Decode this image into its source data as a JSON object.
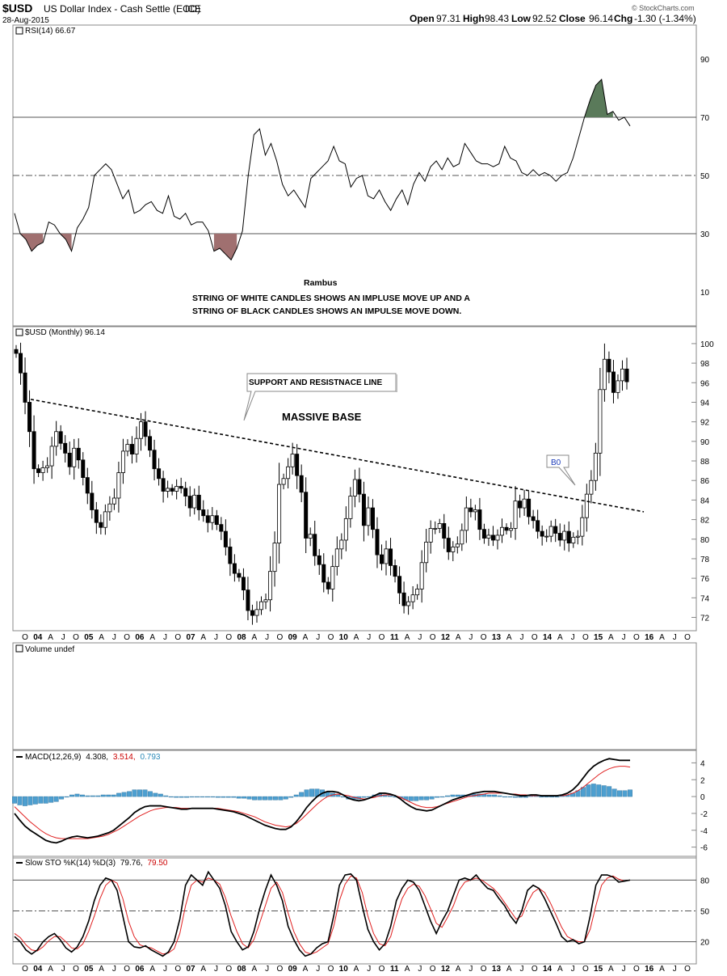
{
  "header": {
    "symbol": "$USD",
    "name": "US Dollar Index - Cash Settle (EOD)",
    "exchange": "ICE",
    "date": "28-Aug-2015",
    "open_label": "Open",
    "open": "97.31",
    "high_label": "High",
    "high": "98.43",
    "low_label": "Low",
    "low": "92.52",
    "close_label": "Close",
    "close": "96.14",
    "chg_label": "Chg",
    "chg": "-1.30 (-1.34%)",
    "watermark": "© StockCharts.com"
  },
  "colors": {
    "up_candle": "#ffffff",
    "down_candle": "#000000",
    "rsi_overbought_fill": "#5a7a5a",
    "rsi_oversold_fill": "#a07070",
    "histogram": "#4d9fd0",
    "signal_line": "#e02020",
    "grid": "#d0d0d0",
    "sto_d_label": "#cc0000",
    "macd_hist_label": "#2a8ab8"
  },
  "x_axis": {
    "labels_row": [
      "O",
      "04",
      "A",
      "J",
      "O",
      "05",
      "A",
      "J",
      "O",
      "06",
      "A",
      "J",
      "O",
      "07",
      "A",
      "J",
      "O",
      "08",
      "A",
      "J",
      "O",
      "09",
      "A",
      "J",
      "O",
      "10",
      "A",
      "J",
      "O",
      "11",
      "A",
      "J",
      "O",
      "12",
      "A",
      "J",
      "O",
      "13",
      "A",
      "J",
      "O",
      "14",
      "A",
      "J",
      "O",
      "15",
      "A",
      "J",
      "O",
      "16",
      "A",
      "J",
      "O"
    ]
  },
  "chart_data": [
    {
      "type": "line",
      "panel": "rsi",
      "legend": "RSI(14) 66.67",
      "yticks": [
        90,
        70,
        50,
        30,
        10
      ],
      "ylim": [
        0,
        100
      ],
      "reference_lines": [
        70,
        50,
        30
      ],
      "values": [
        37,
        30,
        28,
        24,
        26,
        27,
        34,
        33,
        30,
        28,
        24,
        32,
        35,
        39,
        50,
        52,
        54,
        52,
        47,
        42,
        45,
        37,
        38,
        40,
        41,
        38,
        37,
        43,
        36,
        35,
        37,
        33,
        34,
        34,
        31,
        24,
        25,
        23,
        21,
        25,
        31,
        50,
        64,
        66,
        57,
        61,
        55,
        47,
        43,
        45,
        42,
        39,
        49,
        51,
        53,
        55,
        60,
        55,
        54,
        46,
        49,
        50,
        43,
        42,
        45,
        41,
        38,
        42,
        45,
        40,
        47,
        51,
        48,
        53,
        55,
        52,
        56,
        53,
        54,
        61,
        58,
        55,
        54,
        54,
        53,
        54,
        60,
        56,
        55,
        51,
        50,
        52,
        50,
        51,
        50,
        48,
        50,
        51,
        56,
        63,
        70,
        76,
        81,
        83,
        71,
        72,
        69,
        70,
        67
      ]
    },
    {
      "type": "candlestick",
      "panel": "price",
      "legend": "$USD (Monthly) 96.14",
      "yticks": [
        100,
        98,
        96,
        94,
        92,
        90,
        88,
        86,
        84,
        82,
        80,
        78,
        76,
        74,
        72
      ],
      "ylim": [
        70.8,
        101.4
      ],
      "closes": [
        99.0,
        97.0,
        94.0,
        91.0,
        87.2,
        86.8,
        87.3,
        87.5,
        89.5,
        91.0,
        89.8,
        88.8,
        87.4,
        89.3,
        88.1,
        86.3,
        84.7,
        83.0,
        81.7,
        81.2,
        82.8,
        83.6,
        84.2,
        86.8,
        89.0,
        89.7,
        88.7,
        90.3,
        92.0,
        90.5,
        89.1,
        87.2,
        86.2,
        84.9,
        85.2,
        84.9,
        85.4,
        85.2,
        84.4,
        83.2,
        84.5,
        83.0,
        82.4,
        81.7,
        82.4,
        81.5,
        80.8,
        79.2,
        77.5,
        76.5,
        76.1,
        74.8,
        72.7,
        72.2,
        72.8,
        73.6,
        73.8,
        76.7,
        79.6,
        85.6,
        86.2,
        87.4,
        88.7,
        86.5,
        84.8,
        80.1,
        80.5,
        78.3,
        77.4,
        75.6,
        74.9,
        77.2,
        79.0,
        79.9,
        82.1,
        84.4,
        86.1,
        84.6,
        81.4,
        83.2,
        81.0,
        78.4,
        77.5,
        79.0,
        77.3,
        76.2,
        74.5,
        73.2,
        73.6,
        74.3,
        74.9,
        77.6,
        79.7,
        81.1,
        81.1,
        81.6,
        80.1,
        78.7,
        79.2,
        79.5,
        80.9,
        83.2,
        82.8,
        83.0,
        81.0,
        80.1,
        80.4,
        79.9,
        80.4,
        81.2,
        80.9,
        81.1,
        83.9,
        83.2,
        84.1,
        82.3,
        81.9,
        80.8,
        80.3,
        80.3,
        81.3,
        80.6,
        79.9,
        80.8,
        79.6,
        80.2,
        80.3,
        82.2,
        84.6,
        86.0,
        88.8,
        95.3,
        98.4,
        97.1,
        95.0,
        96.2,
        97.4,
        96.1
      ],
      "trendline": {
        "label": "SUPPORT AND RESISTNACE LINE",
        "start": 94.3,
        "end": 82.8
      },
      "annotations": [
        "MASSIVE BASE",
        "B0"
      ]
    },
    {
      "type": "bar",
      "panel": "volume",
      "legend": "Volume undef",
      "values": []
    },
    {
      "type": "line",
      "panel": "macd",
      "legend_prefix": "MACD(12,26,9)",
      "legend_macd": "4.308,",
      "legend_signal": "3.514,",
      "legend_hist": "0.793",
      "yticks": [
        4,
        2,
        0,
        -2,
        -4,
        -6
      ],
      "ylim": [
        -7,
        5
      ],
      "macd": [
        -2.0,
        -2.8,
        -3.5,
        -4.0,
        -4.4,
        -4.8,
        -5.2,
        -5.4,
        -5.5,
        -5.3,
        -5.0,
        -4.8,
        -4.7,
        -4.8,
        -4.9,
        -4.8,
        -4.7,
        -4.5,
        -4.3,
        -4.0,
        -3.5,
        -3.0,
        -2.5,
        -1.9,
        -1.5,
        -1.2,
        -1.1,
        -1.1,
        -1.1,
        -1.2,
        -1.3,
        -1.4,
        -1.5,
        -1.5,
        -1.4,
        -1.4,
        -1.4,
        -1.4,
        -1.4,
        -1.5,
        -1.6,
        -1.7,
        -1.8,
        -2.0,
        -2.2,
        -2.5,
        -2.8,
        -3.1,
        -3.4,
        -3.6,
        -3.8,
        -3.9,
        -3.9,
        -3.6,
        -3.0,
        -2.2,
        -1.3,
        -0.6,
        0.0,
        0.4,
        0.6,
        0.6,
        0.5,
        0.2,
        -0.2,
        -0.4,
        -0.5,
        -0.4,
        -0.2,
        0.1,
        0.4,
        0.4,
        0.3,
        0.1,
        -0.3,
        -0.8,
        -1.2,
        -1.5,
        -1.6,
        -1.7,
        -1.6,
        -1.3,
        -1.0,
        -0.7,
        -0.4,
        -0.2,
        0.0,
        0.2,
        0.4,
        0.5,
        0.6,
        0.6,
        0.6,
        0.5,
        0.4,
        0.3,
        0.2,
        0.1,
        0.1,
        0.2,
        0.2,
        0.1,
        0.1,
        0.1,
        0.1,
        0.2,
        0.4,
        0.8,
        1.4,
        2.2,
        3.0,
        3.6,
        4.0,
        4.3,
        4.5,
        4.4,
        4.3,
        4.3,
        4.3
      ],
      "signal": [
        -1.2,
        -1.8,
        -2.4,
        -3.0,
        -3.5,
        -4.0,
        -4.4,
        -4.7,
        -4.9,
        -5.0,
        -5.0,
        -5.0,
        -5.0,
        -5.0,
        -5.0,
        -4.9,
        -4.8,
        -4.7,
        -4.5,
        -4.2,
        -3.9,
        -3.5,
        -3.1,
        -2.7,
        -2.3,
        -2.0,
        -1.7,
        -1.5,
        -1.4,
        -1.3,
        -1.3,
        -1.3,
        -1.4,
        -1.4,
        -1.4,
        -1.4,
        -1.4,
        -1.4,
        -1.4,
        -1.4,
        -1.5,
        -1.6,
        -1.7,
        -1.8,
        -2.0,
        -2.2,
        -2.4,
        -2.7,
        -3.0,
        -3.2,
        -3.4,
        -3.5,
        -3.6,
        -3.5,
        -3.2,
        -2.7,
        -2.1,
        -1.5,
        -0.9,
        -0.4,
        0.0,
        0.2,
        0.3,
        0.2,
        0.1,
        -0.1,
        -0.2,
        -0.3,
        -0.2,
        -0.1,
        0.1,
        0.2,
        0.2,
        0.1,
        -0.1,
        -0.4,
        -0.7,
        -1.0,
        -1.2,
        -1.3,
        -1.3,
        -1.2,
        -1.0,
        -0.8,
        -0.6,
        -0.4,
        -0.2,
        0.0,
        0.1,
        0.2,
        0.3,
        0.4,
        0.4,
        0.4,
        0.4,
        0.3,
        0.3,
        0.2,
        0.2,
        0.1,
        0.1,
        0.1,
        0.1,
        0.1,
        0.1,
        0.1,
        0.2,
        0.4,
        0.7,
        1.1,
        1.6,
        2.1,
        2.6,
        3.0,
        3.3,
        3.5,
        3.6,
        3.6,
        3.5
      ]
    },
    {
      "type": "line",
      "panel": "slow_sto",
      "legend_prefix": "Slow STO %K(14) %D(3)",
      "legend_k": "79.76,",
      "legend_d": "79.50",
      "yticks": [
        80,
        50,
        20
      ],
      "ylim": [
        0,
        100
      ],
      "k": [
        25,
        20,
        12,
        8,
        12,
        20,
        25,
        28,
        22,
        14,
        10,
        15,
        25,
        40,
        60,
        75,
        82,
        80,
        70,
        45,
        20,
        15,
        14,
        16,
        12,
        9,
        6,
        10,
        20,
        42,
        75,
        85,
        80,
        75,
        88,
        80,
        72,
        55,
        30,
        20,
        12,
        15,
        30,
        52,
        70,
        85,
        75,
        60,
        35,
        22,
        12,
        6,
        8,
        14,
        18,
        20,
        45,
        75,
        85,
        86,
        80,
        55,
        32,
        20,
        12,
        18,
        35,
        60,
        72,
        80,
        78,
        70,
        55,
        40,
        28,
        40,
        50,
        65,
        80,
        82,
        80,
        85,
        78,
        72,
        70,
        62,
        55,
        45,
        38,
        50,
        70,
        75,
        72,
        62,
        50,
        38,
        25,
        20,
        22,
        18,
        20,
        45,
        75,
        85,
        85,
        83,
        78,
        79,
        80
      ],
      "d": [
        28,
        24,
        17,
        12,
        11,
        15,
        21,
        25,
        25,
        20,
        14,
        13,
        18,
        30,
        45,
        62,
        75,
        80,
        77,
        62,
        40,
        25,
        17,
        15,
        14,
        11,
        8,
        9,
        13,
        28,
        55,
        75,
        80,
        78,
        82,
        80,
        76,
        63,
        45,
        30,
        18,
        14,
        22,
        38,
        55,
        72,
        78,
        68,
        48,
        30,
        18,
        10,
        8,
        10,
        14,
        18,
        35,
        60,
        76,
        84,
        82,
        68,
        45,
        28,
        18,
        16,
        25,
        45,
        62,
        72,
        76,
        74,
        65,
        52,
        38,
        34,
        44,
        55,
        70,
        78,
        80,
        82,
        80,
        76,
        72,
        66,
        58,
        50,
        42,
        45,
        58,
        68,
        72,
        68,
        58,
        46,
        34,
        25,
        22,
        20,
        20,
        32,
        55,
        75,
        82,
        84,
        81,
        79,
        80
      ],
      "reference_lines": [
        80,
        50,
        20
      ]
    }
  ],
  "notes": {
    "author": "Rambus",
    "line1": "STRING OF WHITE CANDLES SHOWS AN IMPLUSE MOVE UP AND A",
    "line2": "STRING OF BLACK CANDLES SHOWS AN IMPULSE MOVE DOWN."
  }
}
